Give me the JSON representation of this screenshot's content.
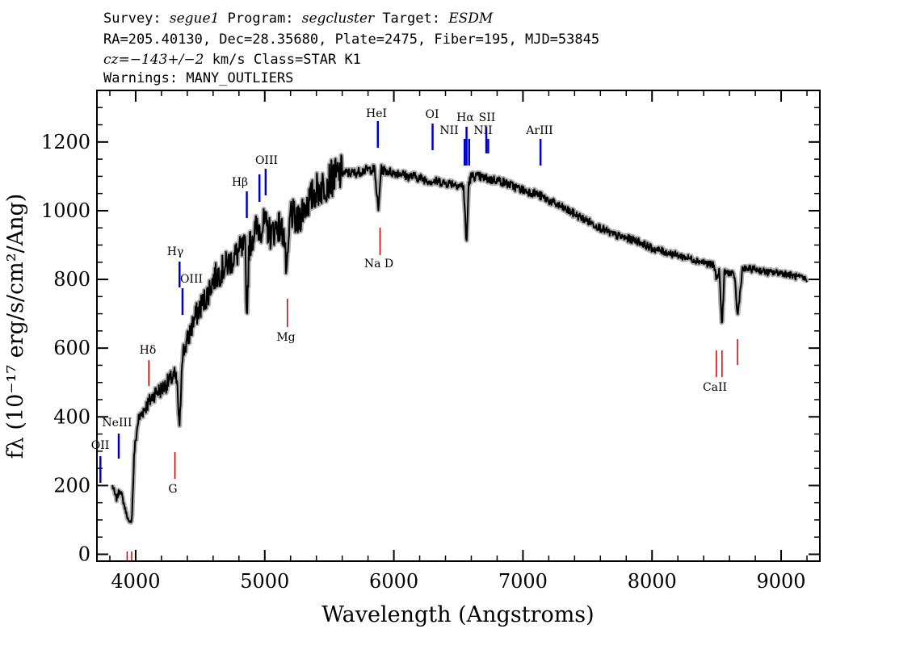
{
  "header": {
    "line1": {
      "survey_label": "Survey: ",
      "survey": "segue1",
      "program_label": " Program: ",
      "program": "segcluster",
      "target_label": " Target: ",
      "target": "ESDM"
    },
    "line2": "RA=205.40130, Dec=28.35680, Plate=2475, Fiber=195, MJD=53845",
    "line3": {
      "cz": "cz=−143+/−2",
      "rest": " km/s Class=STAR K1"
    },
    "line4": "Warnings: MANY_OUTLIERS"
  },
  "chart_data": {
    "type": "line",
    "xlabel": "Wavelength (Angstroms)",
    "ylabel": "fλ (10⁻¹⁷ erg/s/cm²/Ang)",
    "xlim": [
      3700,
      9300
    ],
    "ylim": [
      -20,
      1350
    ],
    "x_ticks": [
      4000,
      5000,
      6000,
      7000,
      8000,
      9000
    ],
    "y_ticks": [
      0,
      200,
      400,
      600,
      800,
      1000,
      1200
    ],
    "grid": false,
    "colors": {
      "flux": "#000000",
      "error": "#b0b0b0",
      "emission": "#0000cc",
      "absorption": "#cc0000"
    },
    "series": [
      {
        "x": [
          3820,
          3850,
          3880,
          3920,
          3950,
          3970,
          3990,
          4020,
          4060,
          4100,
          4150,
          4200,
          4250,
          4300,
          4320,
          4340,
          4360,
          4400,
          4450,
          4500,
          4550,
          4600,
          4650,
          4700,
          4750,
          4800,
          4850,
          4860,
          4880,
          4920,
          4950,
          5000,
          5050,
          5100,
          5150,
          5170,
          5200,
          5250,
          5300,
          5350,
          5400,
          5450,
          5500,
          5550,
          5600,
          5650,
          5700,
          5750,
          5800,
          5850,
          5880,
          5900,
          5950,
          6000,
          6050,
          6100,
          6150,
          6200,
          6250,
          6300,
          6350,
          6400,
          6450,
          6500,
          6540,
          6563,
          6580,
          6600,
          6650,
          6700,
          6750,
          6800,
          6900,
          7000,
          7100,
          7200,
          7300,
          7400,
          7500,
          7600,
          7700,
          7800,
          7900,
          8000,
          8100,
          8200,
          8300,
          8400,
          8480,
          8500,
          8520,
          8542,
          8560,
          8600,
          8640,
          8662,
          8700,
          8800,
          8900,
          9000,
          9100,
          9200
        ],
        "values": [
          200,
          160,
          190,
          130,
          90,
          100,
          300,
          390,
          420,
          440,
          470,
          480,
          500,
          520,
          500,
          360,
          580,
          620,
          680,
          720,
          750,
          800,
          820,
          840,
          860,
          880,
          890,
          690,
          900,
          940,
          950,
          960,
          930,
          960,
          930,
          800,
          1000,
          960,
          1010,
          1030,
          1060,
          1070,
          1090,
          1100,
          1110,
          1110,
          1110,
          1115,
          1120,
          1120,
          1000,
          1120,
          1115,
          1110,
          1110,
          1100,
          1100,
          1095,
          1090,
          1085,
          1085,
          1080,
          1080,
          1075,
          1070,
          900,
          1080,
          1100,
          1100,
          1095,
          1090,
          1090,
          1075,
          1060,
          1050,
          1030,
          1010,
          990,
          970,
          950,
          930,
          920,
          910,
          890,
          880,
          870,
          860,
          850,
          840,
          800,
          830,
          660,
          820,
          820,
          810,
          690,
          830,
          830,
          820,
          820,
          810,
          800
        ]
      }
    ],
    "line_markers": [
      {
        "label": "OII",
        "wavelength": 3727,
        "kind": "emission"
      },
      {
        "label": "NeIII",
        "wavelength": 3869,
        "kind": "emission"
      },
      {
        "label": "Hδ",
        "wavelength": 4102,
        "kind": "absorption"
      },
      {
        "label": "G",
        "wavelength": 4304,
        "kind": "absorption"
      },
      {
        "label": "Hγ",
        "wavelength": 4340,
        "kind": "emission"
      },
      {
        "label": "OIII",
        "wavelength": 4363,
        "kind": "emission"
      },
      {
        "label": "Hβ",
        "wavelength": 4861,
        "kind": "emission"
      },
      {
        "label": "OIII",
        "wavelength": 4959,
        "kind": "emission"
      },
      {
        "label": "",
        "wavelength": 5007,
        "kind": "emission"
      },
      {
        "label": "Mg",
        "wavelength": 5175,
        "kind": "absorption"
      },
      {
        "label": "HeI",
        "wavelength": 5876,
        "kind": "emission"
      },
      {
        "label": "Na D",
        "wavelength": 5893,
        "kind": "absorption"
      },
      {
        "label": "OI",
        "wavelength": 6300,
        "kind": "emission"
      },
      {
        "label": "NII",
        "wavelength": 6548,
        "kind": "emission"
      },
      {
        "label": "Hα",
        "wavelength": 6563,
        "kind": "emission"
      },
      {
        "label": "",
        "wavelength": 6583,
        "kind": "emission"
      },
      {
        "label": "SII",
        "wavelength": 6716,
        "kind": "emission"
      },
      {
        "label": "NII",
        "wavelength": 6731,
        "kind": "emission"
      },
      {
        "label": "ArIII",
        "wavelength": 7136,
        "kind": "emission"
      },
      {
        "label": "CaII",
        "wavelength": 8498,
        "kind": "absorption"
      },
      {
        "label": "",
        "wavelength": 8542,
        "kind": "absorption"
      },
      {
        "label": "",
        "wavelength": 8662,
        "kind": "absorption"
      },
      {
        "label": "",
        "wavelength": 3934,
        "kind": "absorption"
      },
      {
        "label": "",
        "wavelength": 3969,
        "kind": "absorption"
      }
    ]
  }
}
